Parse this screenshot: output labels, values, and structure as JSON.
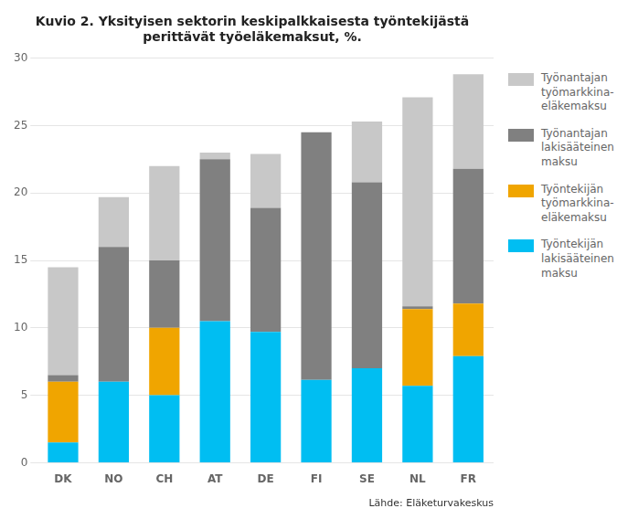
{
  "chart_data": {
    "type": "bar",
    "stacked": true,
    "title": "Kuvio 2. Yksityisen sektorin keskipalkkaisesta työntekijästä\nperittävät työeläkemaksut, %.",
    "categories": [
      "DK",
      "NO",
      "CH",
      "AT",
      "DE",
      "FI",
      "SE",
      "NL",
      "FR"
    ],
    "series": [
      {
        "name": "Työntekijän\nlakisääteinen\nmaksu",
        "color": "#00bef2",
        "values": [
          1.5,
          6.0,
          5.0,
          10.5,
          9.7,
          6.15,
          7.0,
          5.7,
          7.9
        ]
      },
      {
        "name": "Työntekijän\ntyömarkkina-\neläkemaksu",
        "color": "#f0a500",
        "values": [
          4.5,
          0.0,
          5.0,
          0.0,
          0.0,
          0.0,
          0.0,
          5.7,
          3.9
        ]
      },
      {
        "name": "Työnantajan\nlakisääteinen\nmaksu",
        "color": "#808080",
        "values": [
          0.5,
          10.0,
          5.0,
          12.0,
          9.2,
          18.35,
          13.8,
          0.2,
          10.0
        ]
      },
      {
        "name": "Työnantajan\ntyömarkkina-\neläkemaksu",
        "color": "#c8c8c8",
        "values": [
          8.0,
          3.7,
          7.0,
          0.5,
          4.0,
          0.0,
          4.5,
          15.5,
          7.0
        ]
      }
    ],
    "ylim": [
      0,
      30
    ],
    "yticks": [
      0,
      5,
      10,
      15,
      20,
      25,
      30
    ],
    "grid": true,
    "legend": "right",
    "annotations": [
      "Lähde: Eläketurvakeskus"
    ]
  }
}
